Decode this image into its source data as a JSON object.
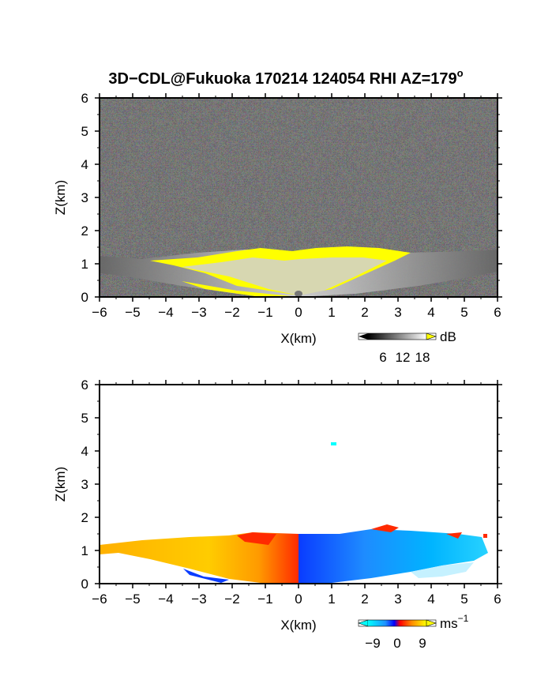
{
  "title": "3D−CDL@Fukuoka 170214 124054 RHI AZ=179",
  "title_degree_symbol": "o",
  "chart_data": [
    {
      "type": "heatmap",
      "name": "reflectivity",
      "xlabel": "X(km)",
      "ylabel": "Z(km)",
      "xlim": [
        -6,
        6
      ],
      "ylim": [
        0,
        6
      ],
      "xticks": [
        "−6",
        "−5",
        "−4",
        "−3",
        "−2",
        "−1",
        "0",
        "1",
        "2",
        "3",
        "4",
        "5",
        "6"
      ],
      "yticks": [
        "0",
        "1",
        "2",
        "3",
        "4",
        "5",
        "6"
      ],
      "background": "#262626",
      "colorbar": {
        "unit": "dB",
        "ticks": [
          "6",
          "12",
          "18"
        ],
        "range": [
          0,
          20
        ],
        "low_color": "#000000",
        "high_color": "#ffff00"
      },
      "echo_top_km": [
        {
          "x": -6,
          "z": 1.05
        },
        {
          "x": -5,
          "z": 1.1
        },
        {
          "x": -4,
          "z": 1.15
        },
        {
          "x": -3,
          "z": 1.2
        },
        {
          "x": -2,
          "z": 1.3
        },
        {
          "x": -1,
          "z": 1.4
        },
        {
          "x": 0,
          "z": 1.45
        },
        {
          "x": 1,
          "z": 1.4
        },
        {
          "x": 2,
          "z": 1.45
        },
        {
          "x": 3,
          "z": 1.35
        },
        {
          "x": 4,
          "z": 1.3
        },
        {
          "x": 5,
          "z": 1.35
        },
        {
          "x": 6,
          "z": 1.5
        }
      ]
    },
    {
      "type": "heatmap",
      "name": "doppler_velocity",
      "xlabel": "X(km)",
      "ylabel": "Z(km)",
      "xlim": [
        -6,
        6
      ],
      "ylim": [
        0,
        6
      ],
      "xticks": [
        "−6",
        "−5",
        "−4",
        "−3",
        "−2",
        "−1",
        "0",
        "1",
        "2",
        "3",
        "4",
        "5",
        "6"
      ],
      "yticks": [
        "0",
        "1",
        "2",
        "3",
        "4",
        "5",
        "6"
      ],
      "background": "#ffffff",
      "colorbar": {
        "unit": "ms",
        "unit_exponent": "−1",
        "ticks": [
          "−9",
          "0",
          "9"
        ],
        "range": [
          -12,
          12
        ],
        "colors": [
          "#00ffff",
          "#1e90ff",
          "#0000ff",
          "#ff0000",
          "#ff8c00",
          "#ffff00"
        ]
      },
      "echo_extent_km": {
        "x_min": -6,
        "x_max": 5.8,
        "z_top_left": 1.15,
        "z_top_right": 1.6
      },
      "isolated_echo": {
        "x": 1.1,
        "z": 4.2,
        "color": "#00ffff"
      }
    }
  ]
}
